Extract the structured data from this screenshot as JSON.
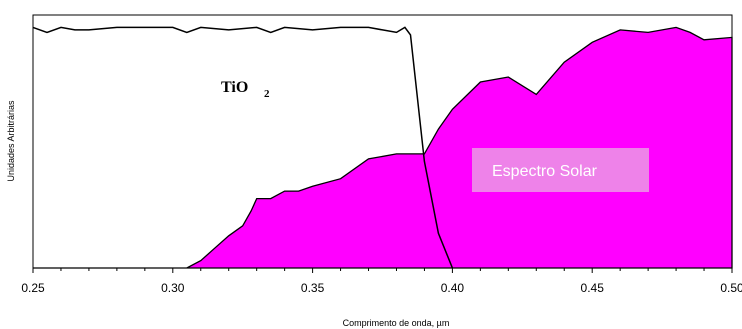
{
  "chart_data": {
    "type": "area",
    "xlabel": "Comprimento de onda, µm",
    "ylabel": "Unidades Arbitrárias",
    "xlim": [
      0.25,
      0.5
    ],
    "ylim": [
      0,
      100
    ],
    "x_ticks": [
      0.25,
      0.3,
      0.35,
      0.4,
      0.45,
      0.5
    ],
    "x_tick_labels": [
      "0.25",
      "0.30",
      "0.35",
      "0.40",
      "0.45",
      "0.50"
    ],
    "grid": false,
    "annotations": {
      "tio2_main": "TiO",
      "tio2_sub": "2",
      "solar": "Espectro Solar"
    },
    "colors": {
      "solar_fill": "#ff00ff",
      "solar_box": "#ee82e9",
      "tio2_line": "#000000"
    },
    "series": [
      {
        "kind": "line",
        "x": [
          0.25,
          0.255,
          0.26,
          0.265,
          0.27,
          0.28,
          0.29,
          0.295,
          0.3,
          0.305,
          0.31,
          0.32,
          0.33,
          0.335,
          0.34,
          0.35,
          0.36,
          0.37,
          0.375,
          0.38,
          0.383,
          0.385,
          0.39,
          0.395,
          0.4
        ],
        "y": [
          97,
          95,
          97,
          96,
          96,
          97,
          97,
          97,
          97,
          95,
          97,
          96,
          97,
          95,
          97,
          96,
          97,
          97,
          96,
          95,
          97,
          94,
          43,
          14,
          0
        ]
      },
      {
        "kind": "area",
        "x": [
          0.25,
          0.305,
          0.31,
          0.315,
          0.32,
          0.325,
          0.328,
          0.33,
          0.335,
          0.34,
          0.345,
          0.35,
          0.36,
          0.37,
          0.38,
          0.39,
          0.395,
          0.4,
          0.41,
          0.42,
          0.43,
          0.44,
          0.45,
          0.46,
          0.47,
          0.48,
          0.485,
          0.49,
          0.5
        ],
        "y": [
          0,
          0,
          3,
          8,
          13,
          17,
          23,
          28,
          28,
          31,
          31,
          33,
          36,
          44,
          46,
          46,
          56,
          64,
          75,
          77,
          70,
          83,
          91,
          96,
          95,
          97,
          95,
          92,
          93
        ]
      }
    ]
  }
}
